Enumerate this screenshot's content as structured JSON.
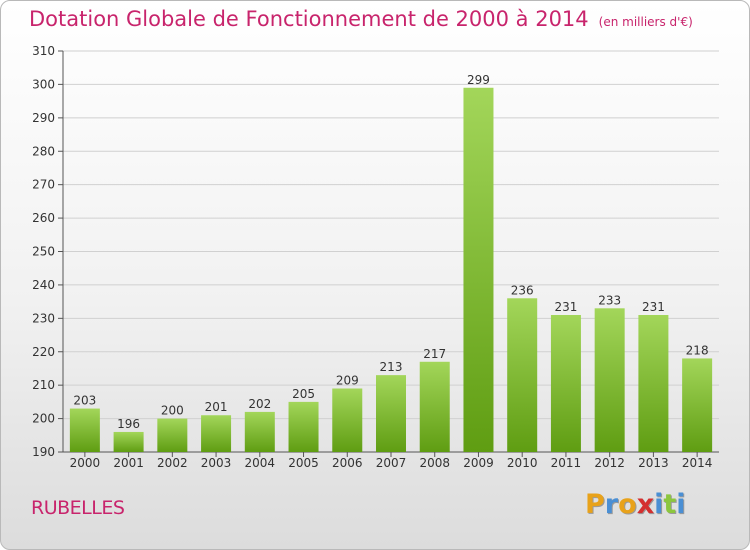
{
  "title": "Dotation Globale de Fonctionnement de 2000 à 2014",
  "unit": "(en milliers d'€)",
  "commune": "RUBELLES",
  "logo": {
    "letters": [
      "P",
      "r",
      "o",
      "x",
      "i",
      "t",
      "i"
    ],
    "colors": [
      "#e8a21a",
      "#4a8fd4",
      "#e8a21a",
      "#d42f2f",
      "#4a8fd4",
      "#8cc63e",
      "#4a8fd4"
    ]
  },
  "colors": {
    "title": "#c8246c",
    "bar_top": "#a3d65a",
    "bar_bottom": "#5f9d12",
    "grid": "#d0d0d0"
  },
  "chart_data": {
    "type": "bar",
    "title": "Dotation Globale de Fonctionnement de 2000 à 2014",
    "subtitle": "(en milliers d'€)",
    "categories": [
      "2000",
      "2001",
      "2002",
      "2003",
      "2004",
      "2005",
      "2006",
      "2007",
      "2008",
      "2009",
      "2010",
      "2011",
      "2012",
      "2013",
      "2014"
    ],
    "values": [
      203,
      196,
      200,
      201,
      202,
      205,
      209,
      213,
      217,
      299,
      236,
      231,
      233,
      231,
      218
    ],
    "ylim": [
      190,
      310
    ],
    "yticks": [
      190,
      200,
      210,
      220,
      230,
      240,
      250,
      260,
      270,
      280,
      290,
      300,
      310
    ],
    "grid": true,
    "xlabel": "",
    "ylabel": ""
  }
}
